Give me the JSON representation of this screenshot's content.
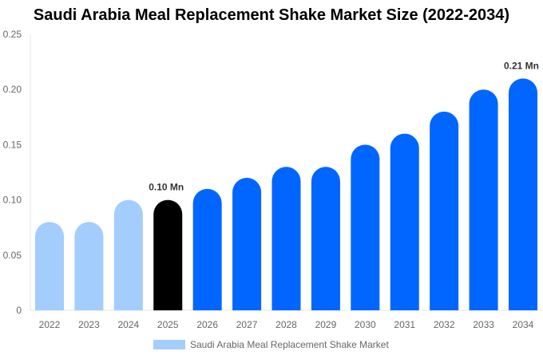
{
  "chart_data": {
    "type": "bar",
    "title": "Saudi Arabia Meal Replacement Shake Market Size (2022-2034)",
    "categories": [
      "2022",
      "2023",
      "2024",
      "2025",
      "2026",
      "2027",
      "2028",
      "2029",
      "2030",
      "2031",
      "2032",
      "2033",
      "2034"
    ],
    "series": [
      {
        "name": "Saudi Arabia Meal Replacement Shake Market",
        "values": [
          0.08,
          0.08,
          0.1,
          0.1,
          0.11,
          0.12,
          0.13,
          0.13,
          0.15,
          0.16,
          0.18,
          0.2,
          0.21
        ]
      }
    ],
    "bar_colors": [
      "#a3cdfd",
      "#a3cdfd",
      "#a3cdfd",
      "#000000",
      "#0066ff",
      "#0066ff",
      "#0066ff",
      "#0066ff",
      "#0066ff",
      "#0066ff",
      "#0066ff",
      "#0066ff",
      "#0066ff"
    ],
    "legend_color": "#a3cdfd",
    "data_labels": [
      {
        "index": 3,
        "text": "0.10 Mn"
      },
      {
        "index": 12,
        "text": "0.21 Mn"
      }
    ],
    "yticks": [
      "0",
      "0.05",
      "0.10",
      "0.15",
      "0.20",
      "0.25"
    ],
    "ylim": [
      0,
      0.25
    ],
    "xlabel": "",
    "ylabel": "",
    "grid": false,
    "legend_position": "bottom"
  }
}
